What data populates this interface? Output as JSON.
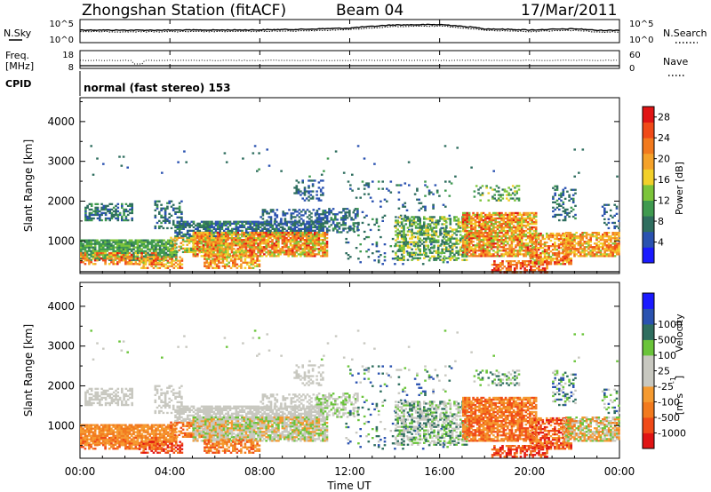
{
  "header": {
    "title": "Zhongshan Station (fitACF)",
    "beam": "Beam 04",
    "date": "17/Mar/2011"
  },
  "panel_labels": {
    "nsky": "N.Sky",
    "freq": "Freq.",
    "freq_unit": "[MHz]",
    "cpid": "CPID",
    "nsearch": "N.Search",
    "nave": "Nave",
    "cpid_value": "normal (fast stereo) 153"
  },
  "colors": {
    "power_scale": [
      "#1a1aff",
      "#2a52b0",
      "#2f6e5f",
      "#3f9a4f",
      "#7cc43a",
      "#f2d02a",
      "#f5a22a",
      "#f27a1e",
      "#f04a18",
      "#e01414"
    ],
    "velocity_scale": [
      "#e01414",
      "#f04a18",
      "#f27a1e",
      "#f59a30",
      "#c8c8c0",
      "#c8c8c0",
      "#6ac43a",
      "#2f6e5f",
      "#2a52b0",
      "#1a1aff"
    ]
  },
  "chart_data": [
    {
      "type": "line",
      "panel": "noise",
      "x": [
        0,
        2,
        4,
        6,
        8,
        10,
        12,
        13,
        14,
        16,
        17,
        18,
        20,
        22,
        23,
        24
      ],
      "series": [
        {
          "name": "N.Sky",
          "values": [
            1000,
            900,
            950,
            1000,
            1100,
            1500,
            3000,
            8000,
            20000,
            25000,
            8000,
            2000,
            1000,
            2000,
            800,
            900
          ]
        },
        {
          "name": "N.Search",
          "values": [
            400,
            350,
            380,
            400,
            450,
            600,
            1200,
            3000,
            8000,
            10000,
            3000,
            800,
            400,
            800,
            300,
            350
          ]
        }
      ],
      "ylabel_ticks": [
        "10^0",
        "10^5"
      ],
      "right_ticks": [
        "10^0",
        "10^5"
      ]
    },
    {
      "type": "line",
      "panel": "freq_nave",
      "freq_ticks": [
        "8",
        "18"
      ],
      "nave_ticks": [
        "0",
        "60"
      ]
    },
    {
      "type": "heatmap",
      "panel": "power",
      "ylabel": "Slant Range [km]",
      "yticks": [
        1000,
        2000,
        3000,
        4000
      ],
      "ylim": [
        180,
        4600
      ],
      "colorbar_label": "Power [dB]",
      "colorbar_ticks": [
        "4",
        "8",
        "12",
        "16",
        "20",
        "24",
        "28"
      ],
      "clim": [
        0,
        30
      ]
    },
    {
      "type": "heatmap",
      "panel": "velocity",
      "ylabel": "Slant Range [km]",
      "yticks": [
        1000,
        2000,
        3000,
        4000
      ],
      "ylim": [
        180,
        4600
      ],
      "colorbar_label": "Velocity",
      "colorbar_unit": "[m s",
      "colorbar_exp": "-1",
      "colorbar_ticks": [
        "-1000",
        "-500",
        "-100",
        "-25",
        "25",
        "100",
        "500",
        "1000"
      ]
    }
  ],
  "xaxis": {
    "ticks": [
      "00:00",
      "04:00",
      "08:00",
      "12:00",
      "16:00",
      "20:00",
      "00:00"
    ],
    "label": "Time UT"
  }
}
